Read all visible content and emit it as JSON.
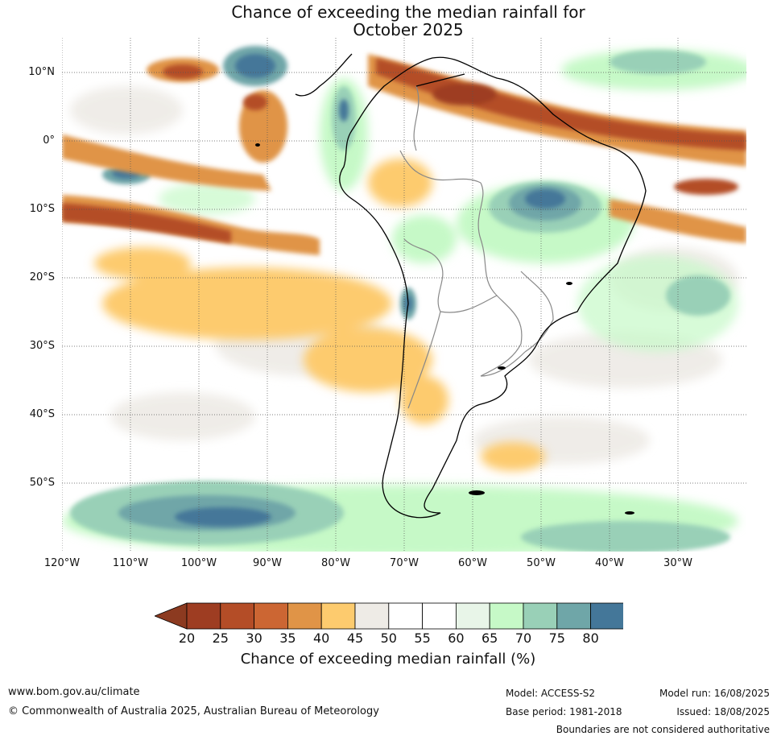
{
  "title_line1": "Chance of exceeding the median rainfall for",
  "title_line2": "October 2025",
  "lat_labels": [
    "10°N",
    "0°",
    "10°S",
    "20°S",
    "30°S",
    "40°S",
    "50°S"
  ],
  "lon_labels": [
    "120°W",
    "110°W",
    "100°W",
    "90°W",
    "80°W",
    "70°W",
    "60°W",
    "50°W",
    "40°W",
    "30°W"
  ],
  "colorbar": {
    "label": "Chance of exceeding median rainfall (%)",
    "ticks": [
      "20",
      "25",
      "30",
      "35",
      "40",
      "45",
      "50",
      "55",
      "60",
      "65",
      "70",
      "75",
      "80"
    ],
    "colors": [
      "#9e3d22",
      "#b44d27",
      "#cc6633",
      "#e09447",
      "#fdcb6e",
      "#eeebe6",
      "#ffffff",
      "#ffffff",
      "#e8f5e8",
      "#c6f9c7",
      "#99d0b7",
      "#6fa6a8",
      "#447799"
    ],
    "under_color": "#8c3a20",
    "over_color": "#1b4f78"
  },
  "footer": {
    "website": "www.bom.gov.au/climate",
    "copyright": "© Commonwealth of Australia 2025, Australian Bureau of Meteorology",
    "model": "Model: ACCESS-S2",
    "base_period": "Base period: 1981-2018",
    "model_run": "Model run: 16/08/2025",
    "issued": "Issued: 18/08/2025",
    "disclaimer": "Boundaries are not considered authoritative"
  }
}
